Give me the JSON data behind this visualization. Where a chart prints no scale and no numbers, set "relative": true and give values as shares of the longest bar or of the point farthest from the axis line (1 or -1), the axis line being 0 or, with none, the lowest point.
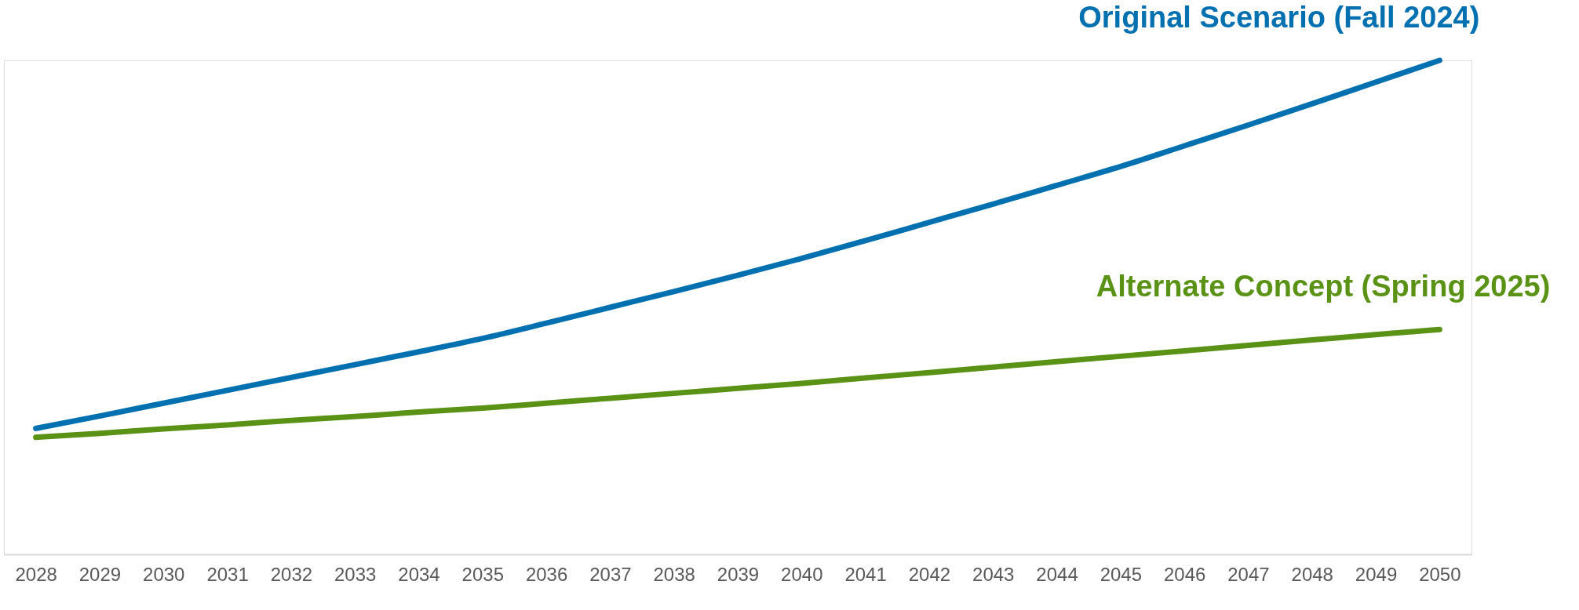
{
  "chart_data": {
    "type": "line",
    "relative": true,
    "grid": false,
    "marker": "none",
    "line_style": "solid",
    "categories": [
      "2028",
      "2029",
      "2030",
      "2031",
      "2032",
      "2033",
      "2034",
      "2035",
      "2036",
      "2037",
      "2038",
      "2039",
      "2040",
      "2041",
      "2042",
      "2043",
      "2044",
      "2045",
      "2046",
      "2047",
      "2048",
      "2049",
      "2050"
    ],
    "series": [
      {
        "name": "Original Scenario (Fall 2024)",
        "color": "#0070b0",
        "values": [
          0.255,
          0.28,
          0.306,
          0.332,
          0.358,
          0.384,
          0.41,
          0.437,
          0.468,
          0.5,
          0.532,
          0.565,
          0.599,
          0.635,
          0.672,
          0.709,
          0.747,
          0.785,
          0.827,
          0.869,
          0.912,
          0.956,
          1
        ]
      },
      {
        "name": "Alternate Concept (Spring 2025)",
        "color": "#5a9216",
        "values": [
          0.237,
          0.245,
          0.254,
          0.262,
          0.271,
          0.279,
          0.288,
          0.296,
          0.306,
          0.316,
          0.326,
          0.336,
          0.346,
          0.357,
          0.368,
          0.379,
          0.39,
          0.401,
          0.412,
          0.423,
          0.434,
          0.445,
          0.455
        ]
      }
    ]
  }
}
